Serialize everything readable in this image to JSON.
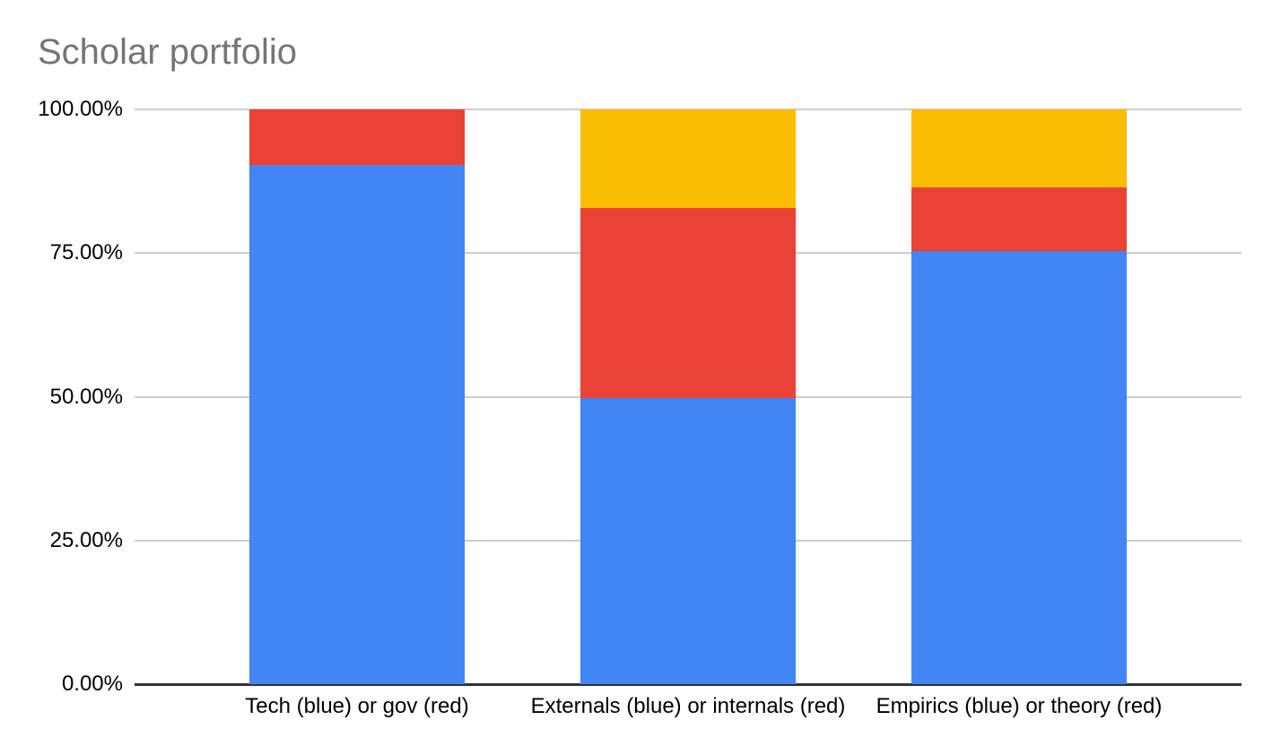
{
  "chart": {
    "title": "Scholar portfolio"
  },
  "styles": {
    "title_color": "#757575",
    "axis_text_color": "#000000",
    "gridline_color": "#cccccc",
    "baseline_color": "#333333",
    "background_color": "#ffffff",
    "series_blue": "#4285F4",
    "series_red": "#EA4335",
    "series_yellow": "#FBBC04"
  },
  "chart_data": {
    "type": "bar",
    "subtype": "column-stacked-100-percent",
    "title": "Scholar portfolio",
    "categories": [
      "Tech (blue) or gov (red)",
      "Externals (blue) or internals (red)",
      "Empirics (blue) or theory (red)"
    ],
    "series": [
      {
        "name": "blue",
        "color": "#4285F4",
        "values": [
          90.3,
          49.8,
          75.4
        ]
      },
      {
        "name": "red",
        "color": "#EA4335",
        "values": [
          9.7,
          33.0,
          11.1
        ]
      },
      {
        "name": "yellow",
        "color": "#FBBC04",
        "values": [
          0,
          17.2,
          13.5
        ]
      }
    ],
    "stack_order": "bottom-to-top",
    "xlabel": "",
    "ylabel": "",
    "ylim": [
      0,
      100
    ],
    "y_ticks": [
      {
        "value": 0,
        "label": "0.00%"
      },
      {
        "value": 25,
        "label": "25.00%"
      },
      {
        "value": 50,
        "label": "50.00%"
      },
      {
        "value": 75,
        "label": "75.00%"
      },
      {
        "value": 100,
        "label": "100.00%"
      }
    ],
    "grid": true,
    "legend": "none"
  }
}
